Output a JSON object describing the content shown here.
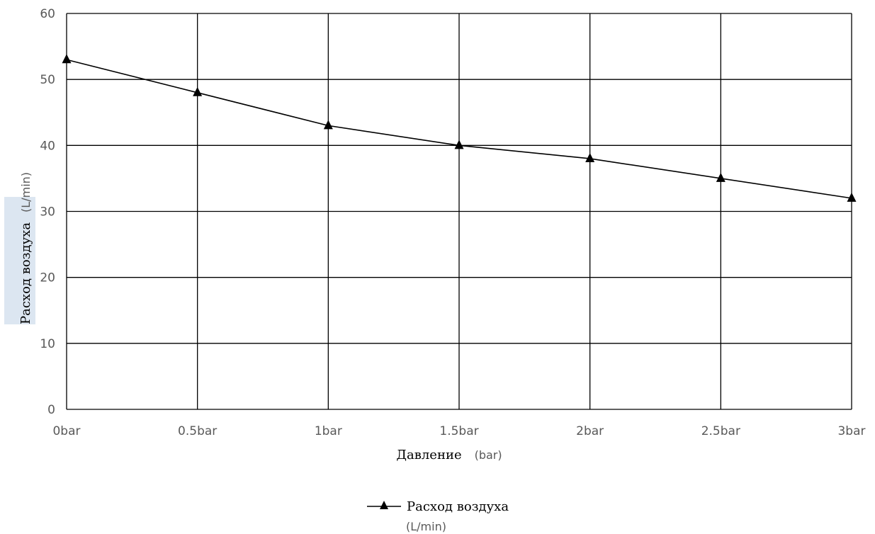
{
  "chart_data": {
    "type": "line",
    "categories": [
      "0bar",
      "0.5bar",
      "1bar",
      "1.5bar",
      "2bar",
      "2.5bar",
      "3bar"
    ],
    "series": [
      {
        "name": "Расход воздуха",
        "name_unit": "(L/min)",
        "values": [
          53,
          48,
          43,
          40,
          38,
          35,
          32
        ],
        "marker": "triangle",
        "color": "#000000"
      }
    ],
    "xlabel": "Давление",
    "xlabel_unit": "(bar)",
    "ylabel": "Расход воздуха",
    "ylabel_unit": "(L/min)",
    "ylim": [
      0,
      60
    ],
    "yticks": [
      0,
      10,
      20,
      30,
      40,
      50,
      60
    ],
    "grid": true,
    "legend_position": "bottom-center"
  },
  "colors": {
    "grid": "#000000",
    "tick_text": "#595959",
    "ylabel_highlight": "#dce6f1"
  }
}
